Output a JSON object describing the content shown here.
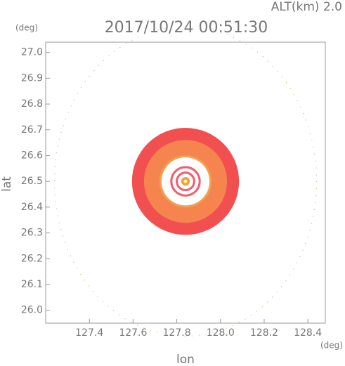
{
  "chart_data": {
    "type": "rings",
    "title": "2017/10/24 00:51:30",
    "subtitle": "ALT(km)  2.0",
    "x_label": "lon",
    "y_label": "lat",
    "x_unit": "(deg)",
    "y_unit": "(deg)",
    "xlim": [
      127.2,
      128.48
    ],
    "ylim": [
      25.95,
      27.04
    ],
    "xticks": [
      127.4,
      127.6,
      127.8,
      {
        "value": 128,
        "label": "128.0"
      },
      128.2,
      128.4
    ],
    "yticks": [
      {
        "value": 26,
        "label": "26.0"
      },
      26.1,
      26.2,
      26.3,
      26.4,
      26.5,
      26.6,
      26.7,
      26.8,
      26.9,
      {
        "value": 27,
        "label": "27.0"
      }
    ],
    "center": {
      "lon": 127.84,
      "lat": 26.5
    },
    "range_circle": {
      "radius": 0.6,
      "color": "#9ccc6a"
    },
    "rings": [
      {
        "radius": 0.245,
        "color": "#f25050"
      },
      {
        "radius": 0.19,
        "color": "#f5844e"
      },
      {
        "radius": 0.12,
        "color": "#f0a050"
      },
      {
        "radius": 0.11,
        "color": "#ffffff"
      },
      {
        "radius": 0.07,
        "color": "#f06070"
      },
      {
        "radius": 0.06,
        "color": "#ffffff"
      },
      {
        "radius": 0.045,
        "color": "#f06070"
      },
      {
        "radius": 0.035,
        "color": "#ffffff"
      },
      {
        "radius": 0.02,
        "color": "#f5a040"
      },
      {
        "radius": 0.008,
        "color": "#fff8a0"
      }
    ]
  }
}
